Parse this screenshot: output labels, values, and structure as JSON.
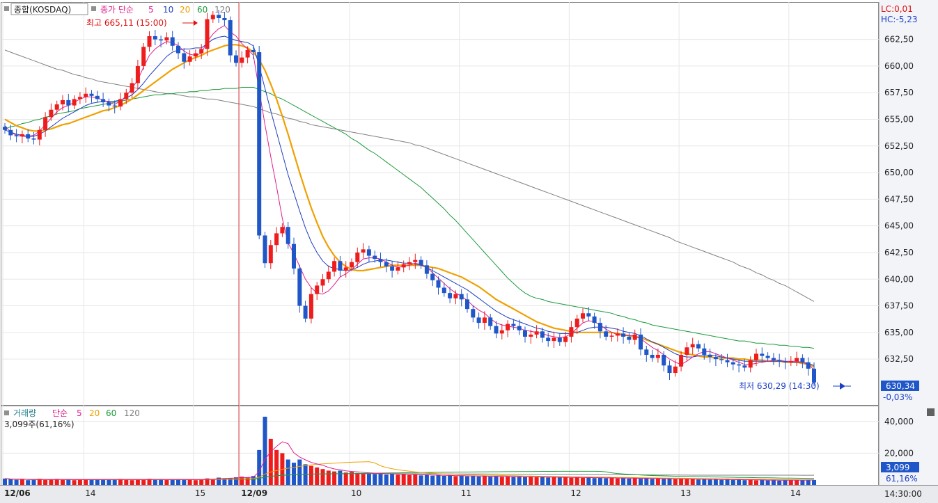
{
  "chart_data": [
    {
      "type": "candlestick",
      "title": "종합(KOSDAQ)",
      "legend": [
        {
          "label": "종가 단순",
          "color": "#e0208c"
        },
        {
          "label": "5",
          "color": "#e0208c"
        },
        {
          "label": "10",
          "color": "#1f3fbf"
        },
        {
          "label": "20",
          "color": "#f0a000"
        },
        {
          "label": "60",
          "color": "#1a9a3a"
        },
        {
          "label": "120",
          "color": "#808080"
        }
      ],
      "y_ticks": [
        "662,50",
        "660,00",
        "657,50",
        "655,00",
        "652,50",
        "650,00",
        "647,50",
        "645,00",
        "642,50",
        "640,00",
        "637,50",
        "635,00",
        "632,50"
      ],
      "ylim": [
        628.2,
        666.0
      ],
      "lc_label": "LC:0,01",
      "hc_label": "HC:-5,23",
      "max_label": "최고 665,11 (15:00)",
      "min_label": "최저 630,29 (14:30)",
      "last_price": "630,34",
      "last_change": "-0,03%",
      "colors": {
        "up": "#ee1c1c",
        "down": "#1f56c8",
        "ma5": "#e0208c",
        "ma10": "#1f3fbf",
        "ma20": "#f0a000",
        "ma60": "#1a9a3a",
        "ma120": "#808080",
        "divider": "#e04040"
      },
      "candles_close": [
        654.0,
        653.5,
        653.4,
        653.6,
        653.2,
        653.1,
        654.0,
        655.2,
        655.9,
        656.4,
        656.8,
        656.3,
        656.9,
        657.1,
        657.4,
        657.2,
        656.9,
        656.6,
        656.3,
        656.2,
        656.9,
        657.5,
        658.4,
        660.0,
        661.8,
        662.8,
        662.5,
        662.4,
        662.7,
        661.9,
        661.2,
        660.4,
        660.9,
        661.2,
        661.6,
        664.4,
        664.8,
        664.5,
        664.3,
        661.0,
        660.3,
        660.8,
        661.5,
        661.3,
        644.1,
        641.5,
        643.2,
        644.3,
        644.9,
        643.3,
        641.0,
        637.5,
        636.3,
        638.6,
        639.4,
        640.0,
        640.7,
        641.7,
        640.8,
        641.1,
        641.6,
        642.5,
        642.8,
        642.2,
        641.9,
        641.6,
        641.2,
        640.8,
        641.1,
        641.4,
        641.6,
        641.8,
        641.3,
        640.5,
        639.9,
        639.2,
        638.7,
        638.2,
        638.6,
        638.1,
        637.2,
        636.4,
        635.9,
        636.4,
        635.6,
        634.9,
        635.2,
        635.8,
        635.6,
        635.2,
        634.6,
        634.8,
        635.1,
        634.5,
        634.2,
        634.5,
        634.1,
        634.6,
        635.5,
        636.3,
        636.8,
        636.5,
        635.9,
        635.1,
        634.6,
        634.7,
        634.9,
        634.6,
        634.3,
        634.8,
        633.4,
        632.9,
        632.6,
        632.9,
        631.9,
        631.2,
        631.8,
        632.9,
        633.6,
        633.9,
        633.5,
        632.9,
        632.7,
        632.5,
        632.4,
        632.2,
        632.0,
        631.9,
        631.7,
        632.4,
        633.0,
        632.8,
        632.6,
        632.4,
        632.3,
        632.2,
        632.3,
        632.6,
        632.2,
        631.6,
        630.3
      ],
      "ma5": [
        654.4,
        653.8,
        653.5,
        653.4,
        653.4,
        653.5,
        653.9,
        654.5,
        655.1,
        655.7,
        656.1,
        656.3,
        656.6,
        656.9,
        657.1,
        657.1,
        657.0,
        656.8,
        656.6,
        656.4,
        656.7,
        657.2,
        657.9,
        658.7,
        659.9,
        661.0,
        661.6,
        662.0,
        662.3,
        662.2,
        661.9,
        661.4,
        661.1,
        661.0,
        661.2,
        662.3,
        663.0,
        663.5,
        663.8,
        663.2,
        662.8,
        662.1,
        661.6,
        661.0,
        657.7,
        654.5,
        651.5,
        648.7,
        645.7,
        643.4,
        642.4,
        641.2,
        640.0,
        639.2,
        638.7,
        638.6,
        638.9,
        639.5,
        640.2,
        640.5,
        640.9,
        641.4,
        641.9,
        642.0,
        642.0,
        641.9,
        641.6,
        641.3,
        641.1,
        641.2,
        641.3,
        641.5,
        641.4,
        641.1,
        640.6,
        640.1,
        639.6,
        639.1,
        638.7,
        638.4,
        638.0,
        637.5,
        637.1,
        636.8,
        636.3,
        635.9,
        635.7,
        635.6,
        635.5,
        635.4,
        635.2,
        635.1,
        635.0,
        634.9,
        634.7,
        634.6,
        634.5,
        634.6,
        634.9,
        635.4,
        635.9,
        636.1,
        636.0,
        635.7,
        635.3,
        635.0,
        634.8,
        634.7,
        634.7,
        634.7,
        634.4,
        634.0,
        633.6,
        633.3,
        632.9,
        632.5,
        632.2,
        632.0,
        632.3,
        632.7,
        633.0,
        633.2,
        633.2,
        633.0,
        632.8,
        632.6,
        632.4,
        632.2,
        632.0,
        632.0,
        632.1,
        632.2,
        632.3,
        632.4,
        632.4,
        632.3,
        632.3,
        632.3,
        632.2,
        632.0,
        631.5
      ],
      "ma10": [
        654.0,
        653.8,
        653.6,
        653.5,
        653.4,
        653.4,
        653.6,
        653.9,
        654.3,
        654.7,
        655.1,
        655.4,
        655.7,
        656.0,
        656.3,
        656.5,
        656.6,
        656.7,
        656.7,
        656.7,
        656.8,
        657.0,
        657.3,
        657.8,
        658.4,
        659.1,
        659.7,
        660.3,
        660.9,
        661.3,
        661.5,
        661.6,
        661.6,
        661.7,
        661.7,
        662.1,
        662.5,
        662.7,
        662.8,
        662.6,
        662.4,
        662.3,
        662.2,
        661.9,
        660.0,
        657.9,
        655.8,
        653.8,
        651.8,
        649.8,
        648.1,
        646.4,
        644.8,
        643.5,
        642.5,
        641.7,
        641.2,
        641.0,
        640.9,
        640.8,
        640.9,
        641.1,
        641.4,
        641.6,
        641.7,
        641.8,
        641.8,
        641.7,
        641.6,
        641.5,
        641.5,
        641.4,
        641.3,
        641.1,
        640.8,
        640.5,
        640.2,
        639.9,
        639.6,
        639.3,
        639.0,
        638.6,
        638.2,
        637.8,
        637.4,
        637.0,
        636.7,
        636.4,
        636.2,
        636.0,
        635.8,
        635.6,
        635.4,
        635.3,
        635.1,
        635.0,
        634.9,
        634.9,
        634.9,
        635.0,
        635.2,
        635.4,
        635.5,
        635.5,
        635.5,
        635.4,
        635.3,
        635.1,
        635.0,
        634.9,
        634.7,
        634.4,
        634.1,
        633.9,
        633.6,
        633.3,
        633.0,
        632.8,
        632.7,
        632.7,
        632.8,
        632.8,
        632.9,
        632.8,
        632.7,
        632.6,
        632.5,
        632.4,
        632.3,
        632.3,
        632.3,
        632.3,
        632.3,
        632.3,
        632.3,
        632.3,
        632.2,
        632.2,
        632.2,
        632.1,
        631.9
      ],
      "ma20": [
        655.0,
        654.7,
        654.4,
        654.2,
        654.0,
        653.9,
        653.9,
        654.0,
        654.1,
        654.3,
        654.5,
        654.6,
        654.8,
        655.0,
        655.2,
        655.4,
        655.6,
        655.8,
        655.9,
        656.1,
        656.3,
        656.6,
        656.9,
        657.3,
        657.7,
        658.1,
        658.5,
        658.9,
        659.3,
        659.7,
        660.0,
        660.3,
        660.6,
        660.8,
        661.0,
        661.3,
        661.5,
        661.7,
        661.9,
        662.0,
        662.0,
        661.9,
        661.7,
        661.3,
        660.6,
        659.6,
        658.3,
        656.9,
        655.3,
        653.6,
        651.8,
        650.0,
        648.3,
        646.7,
        645.3,
        644.0,
        643.0,
        642.2,
        641.6,
        641.2,
        640.9,
        640.8,
        640.8,
        640.9,
        641.0,
        641.1,
        641.2,
        641.3,
        641.3,
        641.3,
        641.3,
        641.3,
        641.3,
        641.2,
        641.1,
        641.0,
        640.8,
        640.6,
        640.4,
        640.2,
        639.9,
        639.6,
        639.3,
        638.9,
        638.5,
        638.1,
        637.8,
        637.5,
        637.2,
        636.9,
        636.6,
        636.3,
        636.0,
        635.8,
        635.6,
        635.4,
        635.3,
        635.2,
        635.1,
        635.0,
        635.0,
        635.0,
        635.0,
        635.0,
        635.0,
        635.0,
        634.9,
        634.8,
        634.7,
        634.6,
        634.5,
        634.3,
        634.1,
        633.9,
        633.7,
        633.5,
        633.3,
        633.1,
        633.0,
        632.9,
        632.8,
        632.7,
        632.7,
        632.6,
        632.6,
        632.6,
        632.6,
        632.5,
        632.5,
        632.4,
        632.4,
        632.4,
        632.3,
        632.3,
        632.3,
        632.2,
        632.2,
        632.2,
        632.1,
        632.0,
        631.8
      ],
      "ma60": [
        654.1,
        654.3,
        654.4,
        654.6,
        654.7,
        654.9,
        655.0,
        655.2,
        655.3,
        655.5,
        655.6,
        655.7,
        655.8,
        656.0,
        656.1,
        656.2,
        656.3,
        656.4,
        656.5,
        656.6,
        656.7,
        656.8,
        656.9,
        657.0,
        657.1,
        657.2,
        657.3,
        657.3,
        657.4,
        657.4,
        657.5,
        657.5,
        657.6,
        657.6,
        657.7,
        657.7,
        657.8,
        657.8,
        657.9,
        657.9,
        657.9,
        658.0,
        658.0,
        658.0,
        657.8,
        657.6,
        657.4,
        657.1,
        656.9,
        656.6,
        656.3,
        656.0,
        655.7,
        655.4,
        655.1,
        654.8,
        654.5,
        654.2,
        653.9,
        653.6,
        653.2,
        652.9,
        652.5,
        652.1,
        651.8,
        651.4,
        651.0,
        650.6,
        650.2,
        649.8,
        649.4,
        649.0,
        648.6,
        648.1,
        647.6,
        647.1,
        646.6,
        646.0,
        645.5,
        644.9,
        644.3,
        643.7,
        643.1,
        642.5,
        641.9,
        641.3,
        640.7,
        640.1,
        639.6,
        639.1,
        638.7,
        638.4,
        638.2,
        638.1,
        637.9,
        637.8,
        637.7,
        637.6,
        637.5,
        637.4,
        637.3,
        637.2,
        637.1,
        637.0,
        636.9,
        636.8,
        636.6,
        636.5,
        636.3,
        636.2,
        636.0,
        635.9,
        635.7,
        635.6,
        635.5,
        635.4,
        635.3,
        635.2,
        635.1,
        635.0,
        634.9,
        634.8,
        634.7,
        634.6,
        634.5,
        634.4,
        634.3,
        634.2,
        634.2,
        634.1,
        634.0,
        634.0,
        633.9,
        633.9,
        633.8,
        633.8,
        633.7,
        633.7,
        633.6,
        633.6,
        633.5
      ],
      "ma120": [
        661.5,
        661.3,
        661.1,
        660.9,
        660.7,
        660.5,
        660.3,
        660.1,
        659.9,
        659.7,
        659.6,
        659.4,
        659.2,
        659.1,
        658.9,
        658.8,
        658.6,
        658.5,
        658.4,
        658.3,
        658.2,
        658.1,
        658.0,
        657.9,
        657.8,
        657.7,
        657.6,
        657.5,
        657.4,
        657.4,
        657.3,
        657.2,
        657.1,
        657.1,
        657.0,
        656.9,
        656.9,
        656.8,
        656.7,
        656.6,
        656.5,
        656.4,
        656.3,
        656.2,
        656.0,
        655.8,
        655.6,
        655.5,
        655.3,
        655.1,
        655.0,
        654.8,
        654.7,
        654.5,
        654.4,
        654.3,
        654.2,
        654.1,
        654.0,
        653.9,
        653.8,
        653.7,
        653.6,
        653.5,
        653.4,
        653.3,
        653.2,
        653.1,
        653.0,
        652.9,
        652.8,
        652.6,
        652.5,
        652.3,
        652.1,
        651.9,
        651.7,
        651.5,
        651.3,
        651.1,
        650.9,
        650.7,
        650.5,
        650.3,
        650.1,
        649.9,
        649.7,
        649.5,
        649.3,
        649.1,
        648.9,
        648.7,
        648.5,
        648.3,
        648.1,
        647.9,
        647.7,
        647.5,
        647.3,
        647.1,
        646.9,
        646.7,
        646.5,
        646.3,
        646.1,
        645.9,
        645.7,
        645.5,
        645.3,
        645.1,
        644.9,
        644.7,
        644.5,
        644.3,
        644.1,
        643.9,
        643.6,
        643.4,
        643.2,
        643.0,
        642.8,
        642.6,
        642.4,
        642.2,
        642.0,
        641.8,
        641.6,
        641.3,
        641.1,
        640.9,
        640.6,
        640.4,
        640.1,
        639.9,
        639.6,
        639.4,
        639.1,
        638.8,
        638.5,
        638.2,
        637.9
      ]
    },
    {
      "type": "bar",
      "title": "거래량",
      "legend": [
        {
          "label": "단순",
          "color": "#e0208c"
        },
        {
          "label": "5",
          "color": "#e0208c"
        },
        {
          "label": "20",
          "color": "#f0a000"
        },
        {
          "label": "60",
          "color": "#1a9a3a"
        },
        {
          "label": "120",
          "color": "#808080"
        }
      ],
      "info_label": "3,099주(61,16%)",
      "y_ticks": [
        "40,000",
        "20,000"
      ],
      "ylim": [
        0,
        50000
      ],
      "last_value": "3,099",
      "last_percent": "61,16%",
      "values": [
        4000,
        3500,
        3200,
        3600,
        3000,
        3300,
        3900,
        3100,
        3400,
        3800,
        3200,
        3500,
        3000,
        3300,
        3700,
        3100,
        3400,
        3600,
        3200,
        3500,
        3800,
        3300,
        3000,
        3600,
        3400,
        3900,
        3200,
        3500,
        3100,
        3400,
        3700,
        3300,
        3600,
        3000,
        3500,
        4100,
        3800,
        4600,
        4200,
        4400,
        4800,
        5200,
        4600,
        5600,
        22000,
        43000,
        29000,
        22000,
        20000,
        16000,
        14000,
        16000,
        13000,
        12000,
        11000,
        10000,
        9000,
        8500,
        9000,
        7800,
        8200,
        7500,
        7000,
        7600,
        6800,
        7200,
        6500,
        7000,
        6400,
        6800,
        6200,
        6600,
        6000,
        6400,
        5800,
        6200,
        5700,
        6000,
        5500,
        5900,
        5400,
        5800,
        5300,
        5600,
        5200,
        5500,
        5100,
        5400,
        5000,
        5300,
        4900,
        5200,
        4800,
        5100,
        4700,
        5000,
        4600,
        4900,
        4500,
        4800,
        4400,
        4700,
        4300,
        4600,
        4200,
        4500,
        4100,
        4400,
        4000,
        4300,
        3900,
        4200,
        3800,
        4100,
        3700,
        4000,
        3600,
        3900,
        3500,
        3800,
        3400,
        3700,
        3300,
        3600,
        3200,
        3500,
        3100,
        3400,
        3000,
        3300,
        2900,
        3200,
        2800,
        3100,
        2700,
        3000,
        3099,
        3200,
        2900,
        3100,
        3099
      ]
    }
  ],
  "x_ticks": [
    "12/06",
    "14",
    "15",
    "12/09",
    "10",
    "11",
    "12",
    "13",
    "14"
  ],
  "time_label": "14:30:00"
}
